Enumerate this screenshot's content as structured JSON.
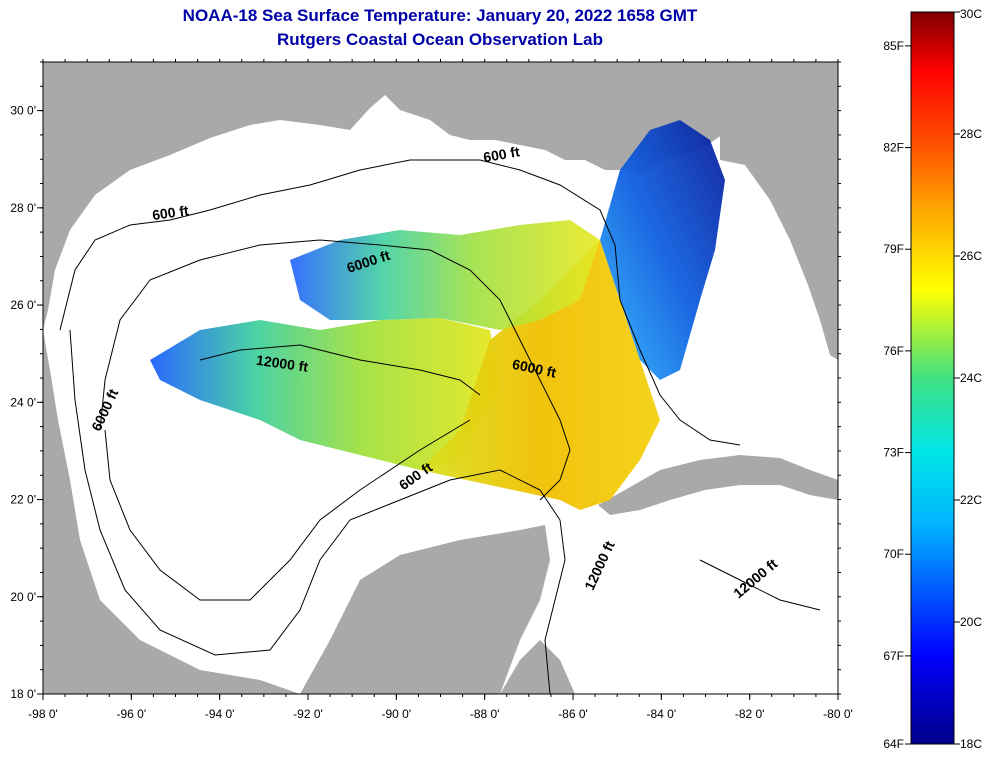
{
  "title": "NOAA-18 Sea Surface Temperature:  January 20, 2022 1658 GMT",
  "subtitle": "Rutgers Coastal Ocean Observation Lab",
  "map": {
    "lon_range": [
      -98,
      -80
    ],
    "lat_range": [
      18,
      31
    ],
    "lon_ticks": [
      {
        "value": -98,
        "label": "-98 0'"
      },
      {
        "value": -96,
        "label": "-96 0'"
      },
      {
        "value": -94,
        "label": "-94 0'"
      },
      {
        "value": -92,
        "label": "-92 0'"
      },
      {
        "value": -90,
        "label": "-90 0'"
      },
      {
        "value": -88,
        "label": "-88 0'"
      },
      {
        "value": -86,
        "label": "-86 0'"
      },
      {
        "value": -84,
        "label": "-84 0'"
      },
      {
        "value": -82,
        "label": "-82 0'"
      },
      {
        "value": -80,
        "label": "-80 0'"
      }
    ],
    "lat_ticks": [
      {
        "value": 18,
        "label": "18 0'"
      },
      {
        "value": 20,
        "label": "20 0'"
      },
      {
        "value": 22,
        "label": "22 0'"
      },
      {
        "value": 24,
        "label": "24 0'"
      },
      {
        "value": 26,
        "label": "26 0'"
      },
      {
        "value": 28,
        "label": "28 0'"
      },
      {
        "value": 30,
        "label": "30 0'"
      }
    ],
    "land_color": "#a9a9a9",
    "contour_labels": [
      {
        "text": "600 ft",
        "lon": -87.6,
        "lat": 29.0,
        "rotate": -10
      },
      {
        "text": "600 ft",
        "lon": -95.1,
        "lat": 27.8,
        "rotate": -8
      },
      {
        "text": "6000 ft",
        "lon": -90.6,
        "lat": 26.8,
        "rotate": -18
      },
      {
        "text": "12000 ft",
        "lon": -92.6,
        "lat": 24.7,
        "rotate": 8
      },
      {
        "text": "6000 ft",
        "lon": -86.9,
        "lat": 24.6,
        "rotate": 12
      },
      {
        "text": "6000 ft",
        "lon": -96.5,
        "lat": 23.8,
        "rotate": -65
      },
      {
        "text": "600 ft",
        "lon": -89.5,
        "lat": 22.4,
        "rotate": -35
      },
      {
        "text": "12000 ft",
        "lon": -85.3,
        "lat": 20.6,
        "rotate": -65
      },
      {
        "text": "12000 ft",
        "lon": -81.8,
        "lat": 20.3,
        "rotate": -40
      }
    ]
  },
  "colorbar": {
    "min_c": 18,
    "max_c": 30,
    "celsius_labels": [
      {
        "value": 30,
        "label": "30C"
      },
      {
        "value": 28,
        "label": "28C"
      },
      {
        "value": 26,
        "label": "26C"
      },
      {
        "value": 24,
        "label": "24C"
      },
      {
        "value": 22,
        "label": "22C"
      },
      {
        "value": 20,
        "label": "20C"
      },
      {
        "value": 18,
        "label": "18C"
      }
    ],
    "fahrenheit_labels": [
      {
        "value": 85,
        "label": "85F"
      },
      {
        "value": 82,
        "label": "82F"
      },
      {
        "value": 79,
        "label": "79F"
      },
      {
        "value": 76,
        "label": "76F"
      },
      {
        "value": 73,
        "label": "73F"
      },
      {
        "value": 70,
        "label": "70F"
      },
      {
        "value": 67,
        "label": "67F"
      },
      {
        "value": 64,
        "label": "64F"
      }
    ]
  }
}
